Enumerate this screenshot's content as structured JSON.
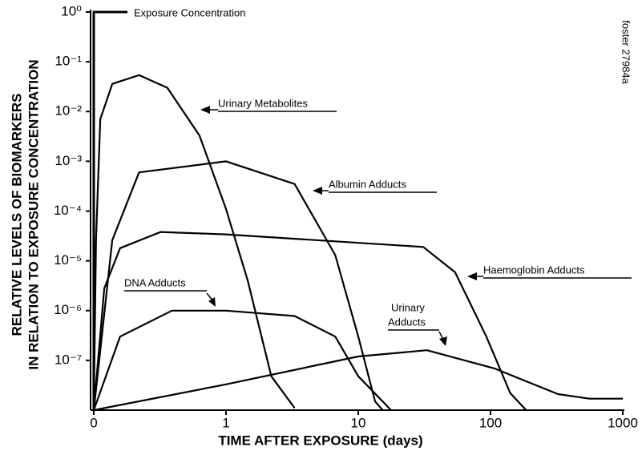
{
  "chart_data": {
    "type": "line",
    "xlabel": "TIME AFTER EXPOSURE (days)",
    "ylabel": [
      "RELATIVE LEVELS OF BIOMARKERS",
      "IN RELATION TO EXPOSURE CONCENTRATION"
    ],
    "side_note": "foster 27984a",
    "xscale": "log",
    "yscale": "log",
    "xlim": [
      0.1,
      1000
    ],
    "ylim": [
      1e-08,
      1
    ],
    "xticks": [
      {
        "value": 0.1,
        "label": "0"
      },
      1,
      10,
      100,
      1000
    ],
    "yticks": [
      {
        "value": 1,
        "label": "10⁰"
      },
      {
        "value": 0.1,
        "label": "10⁻¹"
      },
      {
        "value": 0.01,
        "label": "10⁻²"
      },
      {
        "value": 0.001,
        "label": "10⁻³"
      },
      {
        "value": 0.0001,
        "label": "10⁻⁴"
      },
      {
        "value": 1e-05,
        "label": "10⁻⁵"
      },
      {
        "value": 1e-06,
        "label": "10⁻⁶"
      },
      {
        "value": 1e-07,
        "label": "10⁻⁷"
      }
    ],
    "grid": false,
    "annotations": [
      "Exposure Concentration",
      "Urinary Metabolites",
      "Albumin Adducts",
      "Haemoglobin Adducts",
      "DNA Adducts",
      "Urinary",
      "Adducts"
    ],
    "series": [
      {
        "color": "#000000",
        "x": [
          0.1,
          0.1,
          0.18
        ],
        "values": [
          1e-08,
          1,
          1
        ]
      },
      {
        "color": "#000000",
        "x": [
          0.1,
          0.104,
          0.112,
          0.138,
          0.22,
          0.36,
          0.63,
          1,
          1.46,
          2.2,
          3.3
        ],
        "values": [
          1e-08,
          2.6e-05,
          0.007,
          0.036,
          0.054,
          0.03,
          0.0033,
          0.00011,
          4e-06,
          4.8e-08,
          1.1e-08
        ]
      },
      {
        "color": "#000000",
        "x": [
          0.1,
          0.138,
          0.22,
          1,
          3.3,
          6.7,
          10,
          13.4,
          15.3
        ],
        "values": [
          1e-08,
          2.6e-05,
          0.0006,
          0.001,
          0.00035,
          1.3e-05,
          3e-07,
          1.5e-08,
          1e-08
        ]
      },
      {
        "color": "#000000",
        "x": [
          0.1,
          0.12,
          0.158,
          0.32,
          1,
          31,
          54,
          93,
          141,
          186
        ],
        "values": [
          1e-08,
          2.8e-06,
          1.8e-05,
          3.8e-05,
          3.4e-05,
          1.9e-05,
          5.9e-06,
          3e-07,
          2.2e-08,
          1e-08
        ]
      },
      {
        "color": "#000000",
        "x": [
          0.1,
          0.158,
          0.39,
          1,
          3.3,
          6.7,
          10,
          17.7
        ],
        "values": [
          1e-08,
          3e-07,
          1e-06,
          1e-06,
          7.8e-07,
          3e-07,
          4.8e-08,
          1e-08
        ]
      },
      {
        "color": "#000000",
        "x": [
          0.1,
          1,
          10,
          33,
          107,
          324,
          560,
          1000
        ],
        "values": [
          1e-08,
          3.3e-08,
          1.2e-07,
          1.6e-07,
          6.9e-08,
          2.1e-08,
          1.7e-08,
          1.7e-08
        ]
      }
    ]
  }
}
